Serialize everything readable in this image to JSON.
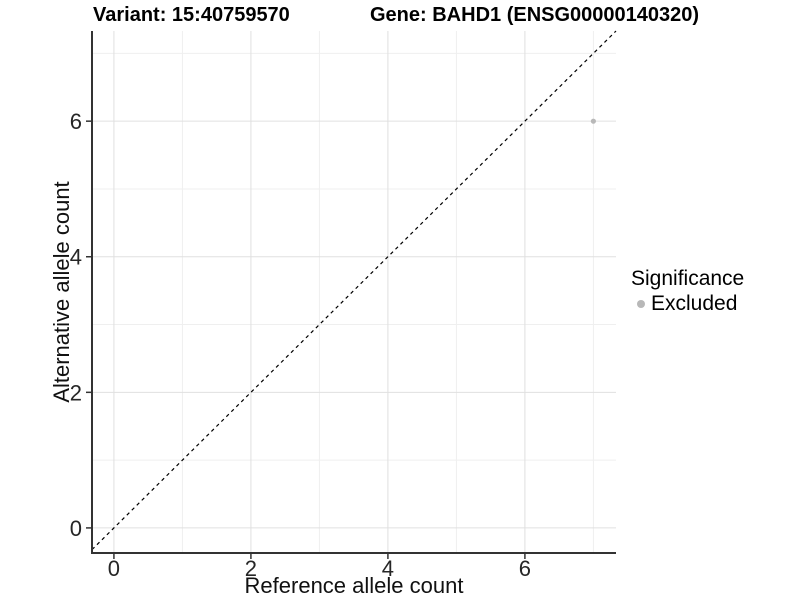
{
  "header": {
    "variant_title": "Variant: 15:40759570",
    "gene_title": "Gene: BAHD1 (ENSG00000140320)"
  },
  "legend": {
    "title": "Significance",
    "items": [
      {
        "label": "Excluded",
        "marker": "dot",
        "color": "#b8b8b8"
      }
    ]
  },
  "chart_data": {
    "type": "scatter",
    "title": "Variant: 15:40759570 / Gene: BAHD1 (ENSG00000140320)",
    "xlabel": "Reference allele count",
    "ylabel": "Alternative allele count",
    "xlim": [
      -0.32,
      7.33
    ],
    "ylim": [
      -0.37,
      7.33
    ],
    "x_major_ticks": [
      0,
      2,
      4,
      6
    ],
    "y_major_ticks": [
      0,
      2,
      4,
      6
    ],
    "x_minor_gridlines": [
      1,
      3,
      5,
      7
    ],
    "y_minor_gridlines": [
      1,
      3,
      5,
      7
    ],
    "grid": true,
    "legend_position": "right",
    "series": [
      {
        "name": "Excluded",
        "color": "#b8b8b8",
        "points": [
          {
            "x": 7,
            "y": 6
          }
        ]
      }
    ],
    "reference_line": {
      "slope": 1,
      "intercept": 0,
      "style": "dashed",
      "color": "#000000"
    }
  },
  "colors": {
    "background": "#ffffff",
    "grid_major": "#e0e0e0",
    "grid_minor": "#efefef",
    "axis_line": "#333333",
    "tick_text": "#262626",
    "title_text": "#000000",
    "point": "#b8b8b8"
  }
}
